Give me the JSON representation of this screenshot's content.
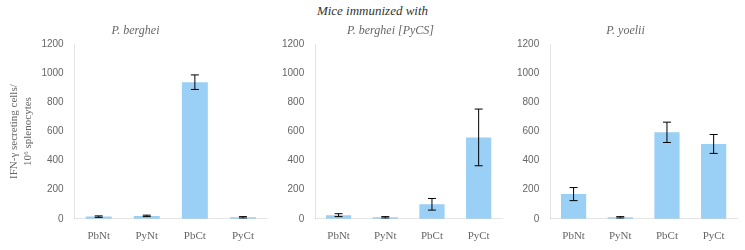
{
  "title": "Mice immunized with",
  "chart_data": [
    {
      "type": "bar",
      "title": "P. berghei",
      "categories": [
        "PbNt",
        "PyNt",
        "PbCt",
        "PyCt"
      ],
      "values": [
        15,
        20,
        940,
        10
      ],
      "errors": [
        5,
        5,
        50,
        5
      ],
      "ylabel": "IFN-γ secreting cells/\n10⁶ splenocytes",
      "ylim": [
        0,
        1200
      ],
      "yticks": [
        0,
        200,
        400,
        600,
        800,
        1000,
        1200
      ],
      "grid": false
    },
    {
      "type": "bar",
      "title": "P. berghei [PyCS]",
      "categories": [
        "PbNt",
        "PyNt",
        "PbCt",
        "PyCt"
      ],
      "values": [
        25,
        10,
        100,
        560
      ],
      "errors": [
        10,
        5,
        40,
        195
      ],
      "ylim": [
        0,
        1200
      ],
      "yticks": [
        0,
        200,
        400,
        600,
        800,
        1000,
        1200
      ],
      "grid": false
    },
    {
      "type": "bar",
      "title": "P. yoelii",
      "categories": [
        "PbNt",
        "PyNt",
        "PbCt",
        "PyCt"
      ],
      "values": [
        170,
        10,
        595,
        515
      ],
      "errors": [
        45,
        5,
        70,
        65
      ],
      "ylim": [
        0,
        1200
      ],
      "yticks": [
        0,
        200,
        400,
        600,
        800,
        1000,
        1200
      ],
      "grid": false
    }
  ]
}
